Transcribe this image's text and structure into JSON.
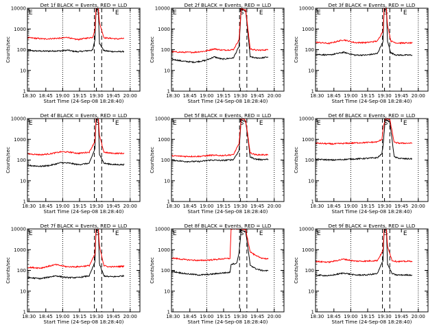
{
  "start_label": "Start Time (24-Sep-08 18:28:40)",
  "y_axis_label": "Counts/sec",
  "x_ticks": [
    "18:30",
    "18:45",
    "19:00",
    "19:15",
    "19:30",
    "19:45",
    "20:00"
  ],
  "y_ticks": [
    "1",
    "10",
    "100",
    "1000",
    "10000"
  ],
  "markers": {
    "start": "E",
    "mid": "S",
    "end": "E"
  },
  "colors": {
    "events": "#000000",
    "lld": "#ff0000"
  },
  "chart_data": [
    {
      "type": "line",
      "title": "Det 1f BLACK = Events, RED = LLD",
      "xlabel": "Start Time (24-Sep-08 18:28:40)",
      "ylabel": "Counts/sec",
      "yscale": "log",
      "ylim": [
        1,
        10000
      ],
      "x_minutes": [
        0,
        15,
        30,
        36,
        40,
        45,
        58,
        60,
        61,
        63,
        64,
        68,
        72,
        75,
        80,
        86
      ],
      "series": [
        {
          "name": "Events",
          "values": [
            90,
            85,
            88,
            95,
            85,
            80,
            95,
            300,
            9000,
            9000,
            200,
            90,
            85,
            82,
            80,
            82
          ]
        },
        {
          "name": "LLD",
          "values": [
            380,
            330,
            360,
            400,
            330,
            310,
            400,
            900,
            10000,
            10000,
            2000,
            380,
            360,
            350,
            330,
            350
          ]
        }
      ]
    },
    {
      "type": "line",
      "title": "Det 2f BLACK = Events, RED = LLD",
      "xlabel": "Start Time (24-Sep-08 18:28:40)",
      "ylabel": "Counts/sec",
      "yscale": "log",
      "ylim": [
        1,
        10000
      ],
      "x_minutes": [
        0,
        10,
        20,
        30,
        38,
        45,
        55,
        60,
        62,
        66,
        70,
        75,
        80,
        86
      ],
      "series": [
        {
          "name": "Events",
          "values": [
            35,
            28,
            25,
            30,
            45,
            35,
            40,
            140,
            9000,
            7000,
            45,
            40,
            40,
            45
          ]
        },
        {
          "name": "LLD",
          "values": [
            80,
            75,
            75,
            85,
            110,
            95,
            100,
            300,
            10000,
            8000,
            110,
            95,
            95,
            100
          ]
        }
      ]
    },
    {
      "type": "line",
      "title": "Det 3f BLACK = Events, RED = LLD",
      "xlabel": "Start Time (24-Sep-08 18:28:40)",
      "ylabel": "Counts/sec",
      "yscale": "log",
      "ylim": [
        1,
        10000
      ],
      "x_minutes": [
        0,
        12,
        25,
        35,
        45,
        55,
        60,
        61,
        63,
        64,
        67,
        72,
        78,
        86
      ],
      "series": [
        {
          "name": "Events",
          "values": [
            60,
            55,
            75,
            55,
            55,
            65,
            250,
            9000,
            9000,
            250,
            70,
            55,
            55,
            55
          ]
        },
        {
          "name": "LLD",
          "values": [
            230,
            200,
            300,
            220,
            220,
            260,
            800,
            10000,
            10000,
            1500,
            260,
            210,
            210,
            210
          ]
        }
      ]
    },
    {
      "type": "line",
      "title": "Det 4f BLACK = Events, RED = LLD",
      "xlabel": "Start Time (24-Sep-08 18:28:40)",
      "ylabel": "Counts/sec",
      "yscale": "log",
      "ylim": [
        1,
        10000
      ],
      "x_minutes": [
        0,
        12,
        20,
        30,
        38,
        45,
        55,
        60,
        61,
        63,
        64,
        68,
        72,
        78,
        86
      ],
      "series": [
        {
          "name": "Events",
          "values": [
            55,
            50,
            55,
            75,
            70,
            60,
            70,
            350,
            9000,
            9000,
            200,
            70,
            65,
            60,
            60
          ]
        },
        {
          "name": "LLD",
          "values": [
            200,
            180,
            200,
            250,
            240,
            210,
            240,
            800,
            10000,
            10000,
            1500,
            240,
            220,
            210,
            210
          ]
        }
      ]
    },
    {
      "type": "line",
      "title": "Det 5f BLACK = Events, RED = LLD",
      "xlabel": "Start Time (24-Sep-08 18:28:40)",
      "ylabel": "Counts/sec",
      "yscale": "log",
      "ylim": [
        1,
        10000
      ],
      "x_minutes": [
        0,
        12,
        25,
        35,
        45,
        55,
        60,
        62,
        66,
        70,
        75,
        80,
        86
      ],
      "series": [
        {
          "name": "Events",
          "values": [
            100,
            85,
            85,
            100,
            95,
            105,
            280,
            9000,
            7000,
            140,
            110,
            105,
            110
          ]
        },
        {
          "name": "LLD",
          "values": [
            160,
            150,
            150,
            170,
            165,
            180,
            600,
            10000,
            8000,
            220,
            180,
            180,
            180
          ]
        }
      ]
    },
    {
      "type": "line",
      "title": "Det 6f BLACK = Events, RED = LLD",
      "xlabel": "Start Time (24-Sep-08 18:28:40)",
      "ylabel": "Counts/sec",
      "yscale": "log",
      "ylim": [
        1,
        10000
      ],
      "x_minutes": [
        0,
        15,
        30,
        45,
        55,
        59,
        60,
        62,
        66,
        70,
        75,
        80,
        86
      ],
      "series": [
        {
          "name": "Events",
          "values": [
            110,
            100,
            110,
            120,
            130,
            200,
            500,
            9000,
            7000,
            140,
            120,
            115,
            115
          ]
        },
        {
          "name": "LLD",
          "values": [
            650,
            600,
            650,
            700,
            750,
            1000,
            3000,
            10000,
            9000,
            700,
            650,
            650,
            650
          ]
        }
      ]
    },
    {
      "type": "line",
      "title": "Det 7f BLACK = Events, RED = LLD",
      "xlabel": "Start Time (24-Sep-08 18:28:40)",
      "ylabel": "Counts/sec",
      "yscale": "log",
      "ylim": [
        1,
        10000
      ],
      "x_minutes": [
        0,
        12,
        25,
        35,
        45,
        55,
        60,
        61,
        63,
        64,
        68,
        72,
        78,
        86
      ],
      "series": [
        {
          "name": "Events",
          "values": [
            45,
            40,
            55,
            45,
            45,
            55,
            250,
            9000,
            9000,
            200,
            55,
            50,
            50,
            55
          ]
        },
        {
          "name": "LLD",
          "values": [
            140,
            130,
            190,
            150,
            150,
            170,
            600,
            10000,
            10000,
            1500,
            170,
            150,
            150,
            160
          ]
        }
      ]
    },
    {
      "type": "line",
      "title": "Det 8f BLACK = Events, RED = LLD",
      "xlabel": "Start Time (24-Sep-08 18:28:40)",
      "ylabel": "Counts/sec",
      "yscale": "log",
      "ylim": [
        1,
        10000
      ],
      "x_minutes": [
        0,
        12,
        25,
        35,
        45,
        52,
        53,
        58,
        60,
        62,
        66,
        70,
        75,
        80,
        86
      ],
      "series": [
        {
          "name": "Events",
          "values": [
            90,
            70,
            60,
            65,
            75,
            80,
            200,
            220,
            700,
            9000,
            7000,
            180,
            120,
            100,
            95
          ]
        },
        {
          "name": "LLD",
          "values": [
            400,
            330,
            300,
            320,
            360,
            380,
            10000,
            10000,
            10000,
            10000,
            9000,
            800,
            500,
            400,
            350
          ]
        }
      ]
    },
    {
      "type": "line",
      "title": "Det 9f BLACK = Events, RED = LLD",
      "xlabel": "Start Time (24-Sep-08 18:28:40)",
      "ylabel": "Counts/sec",
      "yscale": "log",
      "ylim": [
        1,
        10000
      ],
      "x_minutes": [
        0,
        12,
        25,
        35,
        45,
        55,
        60,
        61,
        63,
        64,
        68,
        72,
        78,
        86
      ],
      "series": [
        {
          "name": "Events",
          "values": [
            60,
            55,
            75,
            60,
            60,
            70,
            300,
            9000,
            9000,
            200,
            70,
            60,
            60,
            60
          ]
        },
        {
          "name": "LLD",
          "values": [
            270,
            250,
            350,
            280,
            280,
            300,
            900,
            10000,
            10000,
            1500,
            300,
            270,
            270,
            280
          ]
        }
      ]
    }
  ]
}
